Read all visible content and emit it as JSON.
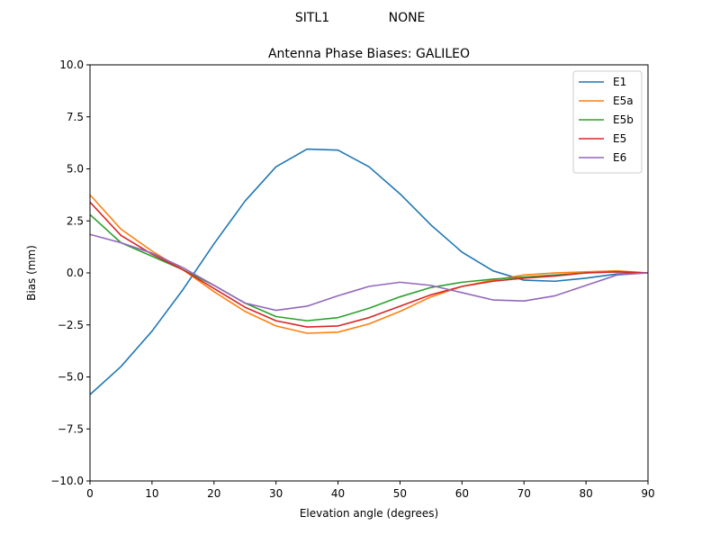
{
  "figure": {
    "suptitle_left": "SITL1",
    "suptitle_right": "NONE"
  },
  "chart_data": {
    "type": "line",
    "title": "Antenna Phase Biases: GALILEO",
    "xlabel": "Elevation angle (degrees)",
    "ylabel": "Bias (mm)",
    "xlim": [
      0,
      90
    ],
    "ylim": [
      -10,
      10
    ],
    "xticks": [
      0,
      10,
      20,
      30,
      40,
      50,
      60,
      70,
      80,
      90
    ],
    "yticks": [
      -10.0,
      -7.5,
      -5.0,
      -2.5,
      0.0,
      2.5,
      5.0,
      7.5,
      10.0
    ],
    "xtick_labels": [
      "0",
      "10",
      "20",
      "30",
      "40",
      "50",
      "60",
      "70",
      "80",
      "90"
    ],
    "ytick_labels": [
      "−10.0",
      "−7.5",
      "−5.0",
      "−2.5",
      "0.0",
      "2.5",
      "5.0",
      "7.5",
      "10.0"
    ],
    "grid": false,
    "legend_position": "top-right",
    "x": [
      0,
      5,
      10,
      15,
      20,
      25,
      30,
      35,
      40,
      45,
      50,
      55,
      60,
      65,
      70,
      75,
      80,
      85,
      90
    ],
    "series": [
      {
        "name": "E1",
        "color": "#1f77b4",
        "values": [
          -5.85,
          -4.5,
          -2.8,
          -0.8,
          1.4,
          3.45,
          5.1,
          5.95,
          5.9,
          5.1,
          3.8,
          2.3,
          1.0,
          0.1,
          -0.35,
          -0.4,
          -0.25,
          -0.05,
          0.0
        ]
      },
      {
        "name": "E5a",
        "color": "#ff7f0e",
        "values": [
          3.75,
          2.1,
          1.05,
          0.15,
          -0.9,
          -1.85,
          -2.55,
          -2.9,
          -2.85,
          -2.45,
          -1.85,
          -1.15,
          -0.65,
          -0.35,
          -0.1,
          0.0,
          0.05,
          0.1,
          0.0
        ]
      },
      {
        "name": "E5b",
        "color": "#2ca02c",
        "values": [
          2.8,
          1.45,
          0.8,
          0.15,
          -0.6,
          -1.45,
          -2.1,
          -2.3,
          -2.15,
          -1.7,
          -1.15,
          -0.7,
          -0.45,
          -0.3,
          -0.2,
          -0.1,
          0.0,
          0.05,
          0.0
        ]
      },
      {
        "name": "E5",
        "color": "#d62728",
        "values": [
          3.4,
          1.8,
          0.9,
          0.15,
          -0.75,
          -1.65,
          -2.3,
          -2.6,
          -2.55,
          -2.15,
          -1.6,
          -1.05,
          -0.65,
          -0.4,
          -0.25,
          -0.15,
          0.0,
          0.05,
          0.0
        ]
      },
      {
        "name": "E6",
        "color": "#9467bd",
        "values": [
          1.85,
          1.45,
          0.95,
          0.25,
          -0.6,
          -1.45,
          -1.8,
          -1.6,
          -1.1,
          -0.65,
          -0.45,
          -0.6,
          -0.95,
          -1.3,
          -1.35,
          -1.1,
          -0.6,
          -0.1,
          0.0
        ]
      }
    ]
  }
}
